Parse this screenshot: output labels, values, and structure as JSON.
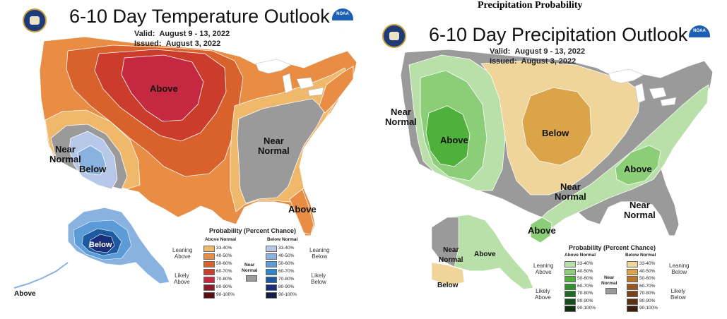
{
  "top_caption": "Precipitation Probability",
  "temperature": {
    "title": "6-10 Day Temperature Outlook",
    "valid_label": "Valid:",
    "valid_value": "August 9 - 13, 2022",
    "issued_label": "Issued:",
    "issued_value": "August 3, 2022",
    "regions": {
      "above_north": "Above",
      "near_normal_west": "Near\nNormal",
      "below_west": "Below",
      "near_normal_east": "Near\nNormal",
      "above_florida": "Above",
      "below_alaska": "Below",
      "above_aleutians": "Above"
    },
    "colors": {
      "above_33": "#efb86a",
      "above_40": "#e88d43",
      "above_50": "#d9612c",
      "above_60": "#cc3c2c",
      "above_70": "#c52840",
      "below_33": "#b7c7e8",
      "below_40": "#8ab2e0",
      "below_50": "#5a9bd8",
      "below_60": "#2e86cc",
      "below_70": "#1d5aa0",
      "below_80": "#1a2f7a",
      "near": "#9a9a9a"
    },
    "legend": {
      "title": "Probability (Percent Chance)",
      "above_head": "Above Normal",
      "below_head": "Below Normal",
      "near_label": "Near\nNormal",
      "leaning_above": "Leaning\nAbove",
      "likely_above": "Likely\nAbove",
      "leaning_below": "Leaning\nBelow",
      "likely_below": "Likely\nBelow",
      "above_items": [
        {
          "label": "33-40%",
          "color": "#efb86a"
        },
        {
          "label": "40-50%",
          "color": "#e88d43"
        },
        {
          "label": "50-60%",
          "color": "#d9612c"
        },
        {
          "label": "60-70%",
          "color": "#cc3c2c"
        },
        {
          "label": "70-80%",
          "color": "#c52840"
        },
        {
          "label": "80-90%",
          "color": "#8c1a2a"
        },
        {
          "label": "90-100%",
          "color": "#5a1010"
        }
      ],
      "below_items": [
        {
          "label": "33-40%",
          "color": "#b7c7e8"
        },
        {
          "label": "40-50%",
          "color": "#8ab2e0"
        },
        {
          "label": "50-60%",
          "color": "#5a9bd8"
        },
        {
          "label": "60-70%",
          "color": "#2e86cc"
        },
        {
          "label": "70-80%",
          "color": "#1d5aa0"
        },
        {
          "label": "80-90%",
          "color": "#1a2f7a"
        },
        {
          "label": "90-100%",
          "color": "#141a4a"
        }
      ]
    }
  },
  "precipitation": {
    "title": "6-10 Day Precipitation Outlook",
    "valid_label": "Valid:",
    "valid_value": "August 9 - 13, 2022",
    "issued_label": "Issued:",
    "issued_value": "August 3, 2022",
    "regions": {
      "near_normal_west": "Near\nNormal",
      "above_rockies": "Above",
      "below_plains": "Below",
      "near_normal_south": "Near\nNormal",
      "above_east": "Above",
      "near_normal_southeast": "Near\nNormal",
      "above_texas": "Above",
      "near_normal_alaska": "Near\nNormal",
      "above_alaska": "Above",
      "below_alaska": "Below"
    },
    "colors": {
      "above_33": "#b8e0a8",
      "above_40": "#8ccd78",
      "above_50": "#4fb13c",
      "below_33": "#f0d59a",
      "below_40": "#dba448",
      "near": "#9a9a9a"
    },
    "legend": {
      "title": "Probability (Percent Chance)",
      "above_head": "Above Normal",
      "below_head": "Below Normal",
      "near_label": "Near\nNormal",
      "leaning_above": "Leaning\nAbove",
      "likely_above": "Likely\nAbove",
      "leaning_below": "Leaning\nBelow",
      "likely_below": "Likely\nBelow",
      "above_items": [
        {
          "label": "33-40%",
          "color": "#b8e0a8"
        },
        {
          "label": "40-50%",
          "color": "#8ccd78"
        },
        {
          "label": "50-60%",
          "color": "#4fb13c"
        },
        {
          "label": "60-70%",
          "color": "#2f8f2f"
        },
        {
          "label": "70-80%",
          "color": "#1f6b25"
        },
        {
          "label": "80-90%",
          "color": "#164d1a"
        },
        {
          "label": "90-100%",
          "color": "#0d3010"
        }
      ],
      "below_items": [
        {
          "label": "33-40%",
          "color": "#f0d59a"
        },
        {
          "label": "40-50%",
          "color": "#dba448"
        },
        {
          "label": "50-60%",
          "color": "#b8752c"
        },
        {
          "label": "60-70%",
          "color": "#96561f"
        },
        {
          "label": "70-80%",
          "color": "#7a4218"
        },
        {
          "label": "80-90%",
          "color": "#5c3012"
        },
        {
          "label": "90-100%",
          "color": "#3c1e0c"
        }
      ]
    }
  },
  "logos": {
    "commerce_icon": "dept-of-commerce-seal-icon",
    "noaa_icon": "noaa-logo-icon",
    "noaa_text": "NOAA"
  }
}
